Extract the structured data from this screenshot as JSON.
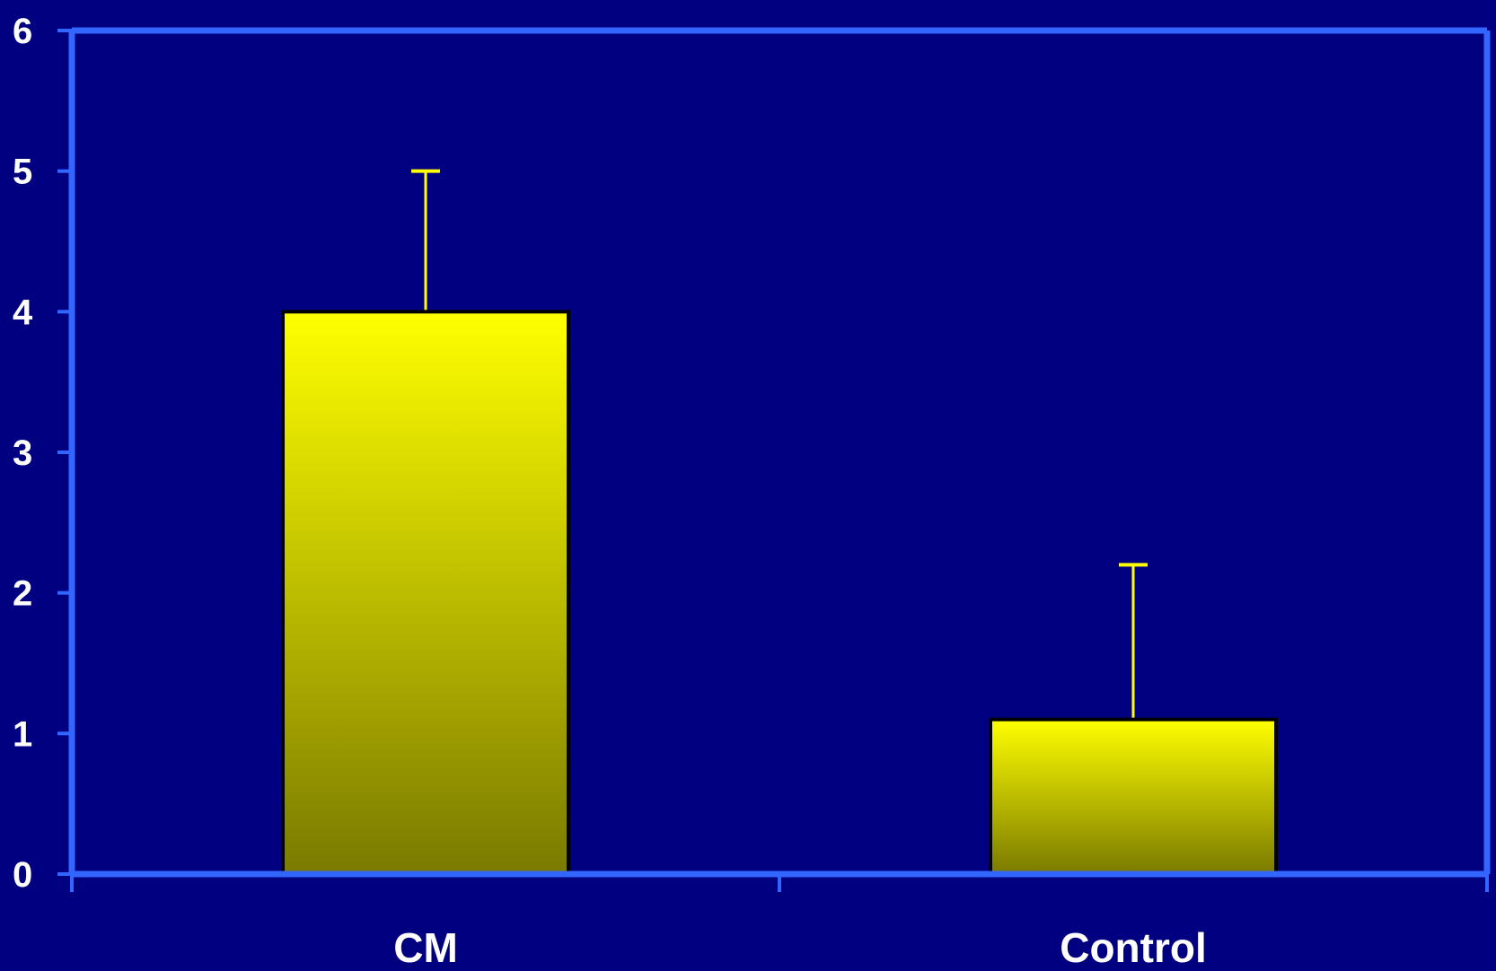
{
  "chart_data": {
    "type": "bar",
    "title": "",
    "xlabel": "",
    "ylabel": "",
    "categories": [
      "CM",
      "Control"
    ],
    "values": [
      4.0,
      1.1
    ],
    "error_upper": [
      1.0,
      1.1
    ],
    "ylim": [
      0,
      6
    ],
    "yticks": [
      0,
      1,
      2,
      3,
      4,
      5,
      6
    ],
    "ytick_labels": [
      "0",
      "1",
      "2",
      "3",
      "4",
      "5",
      "6"
    ],
    "grid": false,
    "legend": "none",
    "colors": {
      "background": "#000080",
      "axis": "#3366ff",
      "bar_top": "#ffff00",
      "bar_bottom": "#7a7a00",
      "bar_outline": "#000000",
      "error_bar": "#ffff00",
      "text": "#ffffff"
    }
  }
}
